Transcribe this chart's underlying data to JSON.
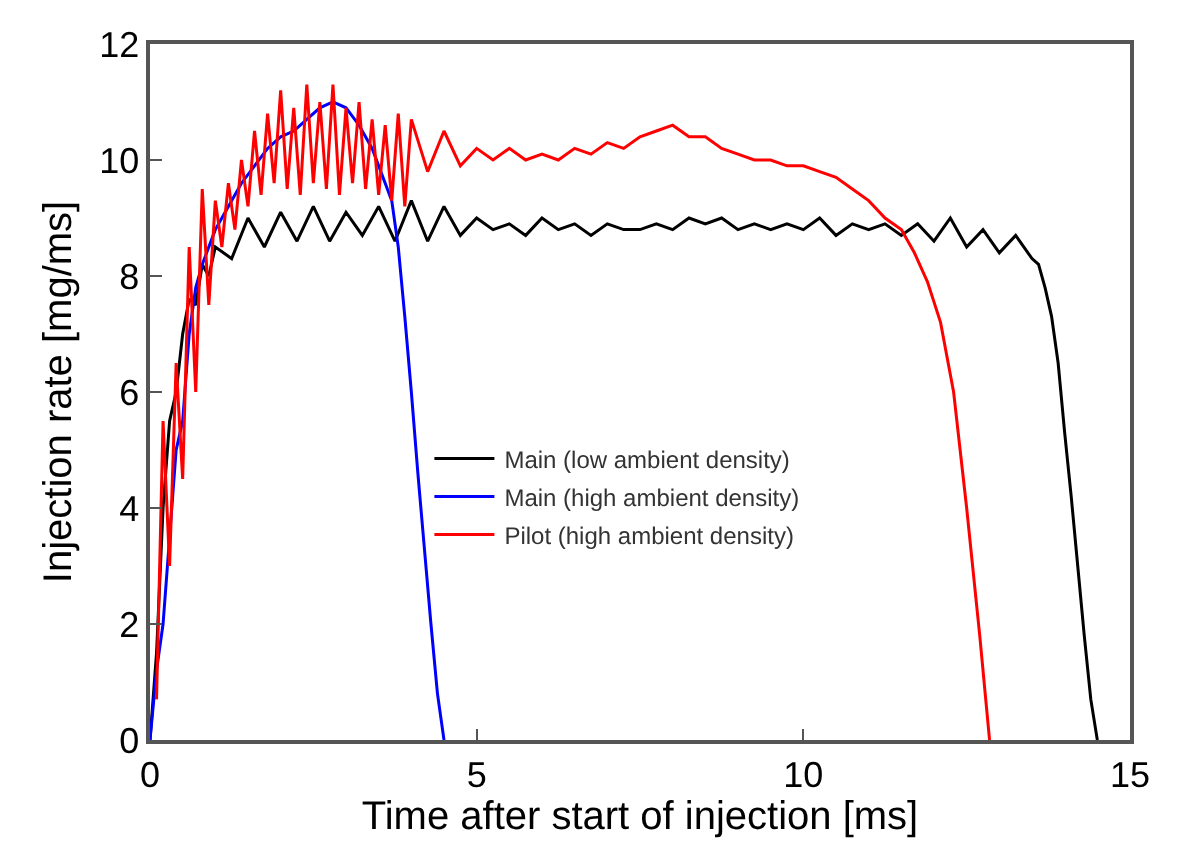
{
  "chart_data": {
    "type": "line",
    "xlabel": "Time after start of injection [ms]",
    "ylabel": "Injection rate [mg/ms]",
    "xlim": [
      0,
      15
    ],
    "xticks": [
      0,
      5,
      10,
      15
    ],
    "ylim": [
      0,
      12
    ],
    "yticks": [
      0,
      2,
      4,
      6,
      8,
      10,
      12
    ],
    "legend": "center left",
    "marker": "none",
    "line_style": "solid",
    "series": [
      {
        "name": "Main (low ambient density)",
        "color": "#000000",
        "x": [
          0,
          0.1,
          0.2,
          0.3,
          0.4,
          0.5,
          0.6,
          0.7,
          0.8,
          0.9,
          1.0,
          1.25,
          1.5,
          1.75,
          2.0,
          2.25,
          2.5,
          2.75,
          3.0,
          3.25,
          3.5,
          3.75,
          4.0,
          4.25,
          4.5,
          4.75,
          5.0,
          5.25,
          5.5,
          5.75,
          6.0,
          6.25,
          6.5,
          6.75,
          7.0,
          7.25,
          7.5,
          7.75,
          8.0,
          8.25,
          8.5,
          8.75,
          9.0,
          9.25,
          9.5,
          9.75,
          10.0,
          10.25,
          10.5,
          10.75,
          11.0,
          11.25,
          11.5,
          11.75,
          12.0,
          12.25,
          12.5,
          12.75,
          13.0,
          13.25,
          13.5,
          13.6,
          13.7,
          13.8,
          13.9,
          14.0,
          14.1,
          14.2,
          14.3,
          14.4,
          14.5
        ],
        "values": [
          0,
          1.5,
          4,
          5.5,
          6,
          7,
          7.6,
          7.5,
          8.2,
          8,
          8.5,
          8.3,
          9.0,
          8.5,
          9.1,
          8.6,
          9.2,
          8.6,
          9.1,
          8.7,
          9.2,
          8.6,
          9.3,
          8.6,
          9.2,
          8.7,
          9.0,
          8.8,
          8.9,
          8.7,
          9.0,
          8.8,
          8.9,
          8.7,
          8.9,
          8.8,
          8.8,
          8.9,
          8.8,
          9.0,
          8.9,
          9.0,
          8.8,
          8.9,
          8.8,
          8.9,
          8.8,
          9.0,
          8.7,
          8.9,
          8.8,
          8.9,
          8.7,
          8.9,
          8.6,
          9.0,
          8.5,
          8.8,
          8.4,
          8.7,
          8.3,
          8.2,
          7.8,
          7.3,
          6.5,
          5.3,
          4.2,
          3,
          1.8,
          0.7,
          0
        ]
      },
      {
        "name": "Main (high ambient density)",
        "color": "#0000ff",
        "x": [
          0,
          0.1,
          0.2,
          0.3,
          0.4,
          0.5,
          0.6,
          0.7,
          0.8,
          1.0,
          1.2,
          1.4,
          1.6,
          1.8,
          2.0,
          2.2,
          2.4,
          2.6,
          2.8,
          3.0,
          3.2,
          3.4,
          3.6,
          3.7,
          3.8,
          3.9,
          4.0,
          4.1,
          4.2,
          4.3,
          4.4,
          4.5
        ],
        "values": [
          0,
          1.2,
          2,
          3.5,
          5,
          5.5,
          7,
          7.8,
          8.2,
          8.8,
          9.2,
          9.6,
          9.9,
          10.2,
          10.4,
          10.5,
          10.7,
          10.9,
          11.0,
          10.9,
          10.6,
          10.2,
          9.6,
          9.3,
          8.5,
          7.3,
          6,
          4.6,
          3.3,
          2,
          0.8,
          0
        ]
      },
      {
        "name": "Pilot (high ambient density)",
        "color": "#ff0000",
        "x": [
          0.1,
          0.2,
          0.3,
          0.4,
          0.5,
          0.6,
          0.7,
          0.8,
          0.9,
          1.0,
          1.1,
          1.2,
          1.3,
          1.4,
          1.5,
          1.6,
          1.7,
          1.8,
          1.9,
          2.0,
          2.1,
          2.2,
          2.3,
          2.4,
          2.5,
          2.6,
          2.7,
          2.8,
          2.9,
          3.0,
          3.1,
          3.2,
          3.3,
          3.4,
          3.5,
          3.6,
          3.7,
          3.8,
          3.9,
          4.0,
          4.25,
          4.5,
          4.75,
          5.0,
          5.25,
          5.5,
          5.75,
          6.0,
          6.25,
          6.5,
          6.75,
          7.0,
          7.25,
          7.5,
          7.75,
          8.0,
          8.25,
          8.5,
          8.75,
          9.0,
          9.25,
          9.5,
          9.75,
          10.0,
          10.25,
          10.5,
          10.75,
          11.0,
          11.25,
          11.5,
          11.7,
          11.9,
          12.1,
          12.3,
          12.5,
          12.7,
          12.85
        ],
        "values": [
          0.7,
          5.5,
          3,
          6.5,
          4.5,
          8.5,
          6,
          9.5,
          7.5,
          9.3,
          8.5,
          9.6,
          8.8,
          10,
          9.2,
          10.5,
          9.4,
          10.8,
          9.6,
          11.2,
          9.5,
          10.9,
          9.4,
          11.3,
          9.6,
          11,
          9.5,
          11.3,
          9.4,
          10.9,
          9.6,
          11,
          9.5,
          10.7,
          9.4,
          10.6,
          9.3,
          10.8,
          9.2,
          10.7,
          9.8,
          10.5,
          9.9,
          10.2,
          10.0,
          10.2,
          10.0,
          10.1,
          10.0,
          10.2,
          10.1,
          10.3,
          10.2,
          10.4,
          10.5,
          10.6,
          10.4,
          10.4,
          10.2,
          10.1,
          10.0,
          10.0,
          9.9,
          9.9,
          9.8,
          9.7,
          9.5,
          9.3,
          9.0,
          8.8,
          8.4,
          7.9,
          7.2,
          6,
          4,
          1.8,
          0
        ]
      }
    ]
  }
}
